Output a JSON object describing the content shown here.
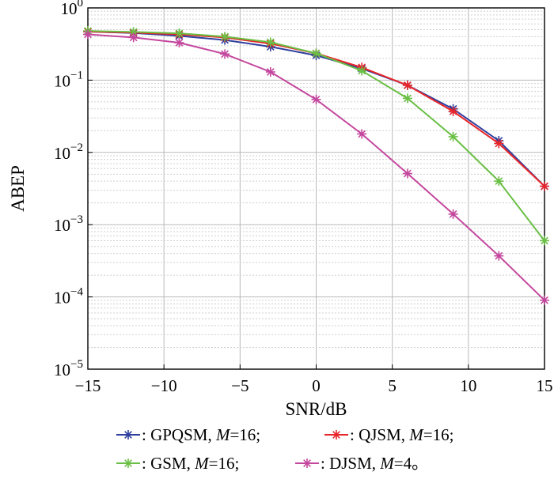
{
  "chart_data": {
    "type": "line",
    "title": "",
    "xlabel": "SNR/dB",
    "ylabel": "ABEP",
    "xscale": "linear",
    "yscale": "log",
    "xlim": [
      -15,
      15
    ],
    "ylim": [
      1e-05,
      1
    ],
    "grid": true,
    "x_ticks": [
      -15,
      -10,
      -5,
      0,
      5,
      10,
      15
    ],
    "x_tick_labels": [
      "−15",
      "−10",
      "−5",
      "0",
      "5",
      "10",
      "15"
    ],
    "y_ticks": [
      {
        "base": "10",
        "exp": "0"
      },
      {
        "base": "10",
        "exp": "−1"
      },
      {
        "base": "10",
        "exp": "−2"
      },
      {
        "base": "10",
        "exp": "−3"
      },
      {
        "base": "10",
        "exp": "−4"
      },
      {
        "base": "10",
        "exp": "−5"
      }
    ],
    "x": [
      -15,
      -12,
      -9,
      -6,
      -3,
      0,
      3,
      6,
      9,
      12,
      15
    ],
    "series": [
      {
        "name": "GPQSM",
        "color": "#2e3f9e",
        "marker": "asterisk",
        "values": [
          0.47,
          0.45,
          0.41,
          0.36,
          0.29,
          0.22,
          0.145,
          0.085,
          0.04,
          0.0145,
          0.0034
        ]
      },
      {
        "name": "QJSM",
        "color": "#e8262a",
        "marker": "asterisk",
        "values": [
          0.47,
          0.455,
          0.43,
          0.39,
          0.32,
          0.235,
          0.15,
          0.085,
          0.037,
          0.0133,
          0.0034
        ]
      },
      {
        "name": "GSM",
        "color": "#6abf45",
        "marker": "asterisk",
        "values": [
          0.48,
          0.465,
          0.445,
          0.4,
          0.335,
          0.235,
          0.135,
          0.056,
          0.0165,
          0.004,
          0.0006
        ]
      },
      {
        "name": "DJSM",
        "color": "#c4479e",
        "marker": "asterisk",
        "values": [
          0.43,
          0.39,
          0.33,
          0.23,
          0.13,
          0.054,
          0.018,
          0.0051,
          0.0014,
          0.00037,
          9e-05
        ]
      }
    ],
    "legend": {
      "placement": "bottom",
      "entries": [
        {
          "series": 0,
          "prefix": ": GPQSM, ",
          "italic": "M",
          "suffix": "=16;"
        },
        {
          "series": 1,
          "prefix": ": QJSM, ",
          "italic": "M",
          "suffix": "=16;"
        },
        {
          "series": 2,
          "prefix": ": GSM, ",
          "italic": "M",
          "suffix": "=16;"
        },
        {
          "series": 3,
          "prefix": ": DJSM, ",
          "italic": "M",
          "suffix": "=4。"
        }
      ]
    }
  }
}
